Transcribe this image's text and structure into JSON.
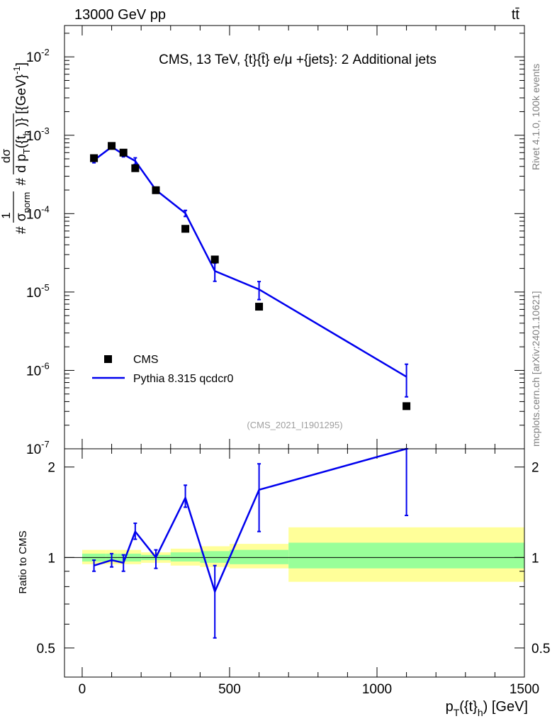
{
  "header": {
    "left": "13000 GeV pp",
    "right": "tt̄"
  },
  "side_labels": {
    "rivet": "Rivet 4.1.0,  100k events",
    "mcplots": "mcplots.cern.ch [arXiv:2401.10621]"
  },
  "chart_data": [
    {
      "type": "scatter",
      "panel": "main",
      "title": "CMS, 13 TeV, {t}{t̄} e/μ +{jets}: 2 Additional jets",
      "analysis_tag": "(CMS_2021_I1901295)",
      "ylabel": "#1/σ_norm #dσ/dp_T({t}_h)} [{GeV}^-1]",
      "ylabel_parts": {
        "hash1": "#",
        "num1": "1",
        "den1": "σ",
        "den1_sub": "norm",
        "hash2": "#",
        "num2": "dσ",
        "den2": "d p",
        "den2_sub": "T",
        "den2_tail": "({t",
        "den2_tail_sub": "h",
        "unit": ")} [{GeV}",
        "unit_sup": "-1",
        "unit_end": "]"
      },
      "yscale": "log",
      "ylim": [
        1e-07,
        0.0251
      ],
      "xlim": [
        -60,
        1500
      ],
      "y_ticks": [
        {
          "value": 0.01,
          "base": "10",
          "exp": "-2"
        },
        {
          "value": 0.001,
          "base": "10",
          "exp": "-3"
        },
        {
          "value": 0.0001,
          "base": "10",
          "exp": "-4"
        },
        {
          "value": 1e-05,
          "base": "10",
          "exp": "-5"
        },
        {
          "value": 1e-06,
          "base": "10",
          "exp": "-6"
        },
        {
          "value": 1e-07,
          "base": "10",
          "exp": "-7"
        }
      ],
      "legend_position": "lower-left",
      "series": [
        {
          "name": "CMS",
          "style": "markers",
          "color": "#000000",
          "x": [
            40,
            100,
            140,
            180,
            250,
            350,
            450,
            600,
            1100
          ],
          "y": [
            0.00051,
            0.00073,
            0.0006,
            0.00038,
            0.000199,
            6.4e-05,
            2.6e-05,
            6.5e-06,
            3.5e-07
          ]
        },
        {
          "name": "Pythia 8.315 qcdcr0",
          "style": "line",
          "color": "#0000ee",
          "x": [
            40,
            100,
            140,
            180,
            250,
            350,
            450,
            600,
            1100
          ],
          "y": [
            0.00048,
            0.00071,
            0.00057,
            0.00047,
            0.0002,
            0.000101,
            1.85e-05,
            1.08e-05,
            8.3e-07
          ],
          "yerr": [
            3.5e-05,
            4e-05,
            4e-05,
            4.5e-05,
            1.2e-05,
            9e-06,
            4.8e-06,
            2.8e-06,
            3.7e-07
          ]
        }
      ]
    },
    {
      "type": "line",
      "panel": "ratio",
      "ylabel": "Ratio to CMS",
      "xlabel_parts": {
        "p": "p",
        "sub1": "T",
        "mid": "({t}",
        "sub2": "h",
        "end": ") [GeV]"
      },
      "xlim": [
        -60,
        1500
      ],
      "yscale": "log",
      "ylim": [
        0.4,
        2.3
      ],
      "x_ticks": [
        {
          "value": 0,
          "label": "0"
        },
        {
          "value": 500,
          "label": "500"
        },
        {
          "value": 1000,
          "label": "1000"
        },
        {
          "value": 1500,
          "label": "1500"
        }
      ],
      "y_ticks": [
        {
          "value": 0.5,
          "label": "0.5"
        },
        {
          "value": 1,
          "label": "1"
        },
        {
          "value": 2,
          "label": "2"
        }
      ],
      "reference_line": 1,
      "bands": {
        "bin_edges": [
          0,
          80,
          120,
          160,
          200,
          300,
          400,
          500,
          700,
          1500
        ],
        "inner": [
          [
            0.97,
            1.03
          ],
          [
            0.97,
            1.03
          ],
          [
            0.97,
            1.03
          ],
          [
            0.97,
            1.03
          ],
          [
            0.98,
            1.02
          ],
          [
            0.97,
            1.04
          ],
          [
            0.96,
            1.05
          ],
          [
            0.95,
            1.06
          ],
          [
            0.92,
            1.12
          ]
        ],
        "outer": [
          [
            0.95,
            1.06
          ],
          [
            0.95,
            1.06
          ],
          [
            0.95,
            1.06
          ],
          [
            0.95,
            1.06
          ],
          [
            0.96,
            1.04
          ],
          [
            0.94,
            1.07
          ],
          [
            0.93,
            1.09
          ],
          [
            0.92,
            1.11
          ],
          [
            0.83,
            1.26
          ]
        ],
        "inner_color": "#99ff99",
        "outer_color": "#ffff99"
      },
      "series": [
        {
          "name": "Pythia 8.315 qcdcr0",
          "color": "#0000ee",
          "x": [
            40,
            100,
            140,
            180,
            250,
            350,
            450,
            600,
            1100
          ],
          "y": [
            0.94,
            0.98,
            0.96,
            1.22,
            1.0,
            1.58,
            0.77,
            1.68,
            2.3
          ],
          "ylo": [
            0.9,
            0.93,
            0.9,
            1.15,
            0.92,
            1.47,
            0.54,
            1.22,
            1.38
          ],
          "yhi": [
            0.98,
            1.03,
            1.02,
            1.3,
            1.06,
            1.74,
            0.94,
            2.05,
            2.3
          ]
        }
      ]
    }
  ]
}
